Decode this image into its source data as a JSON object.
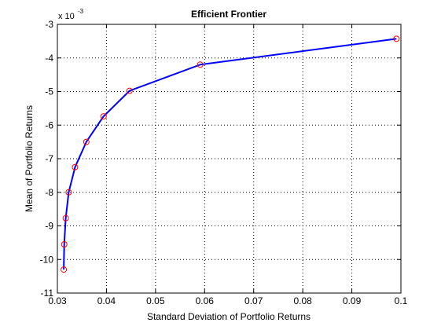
{
  "chart_data": {
    "type": "line",
    "title": "Efficient Frontier",
    "xlabel": "Standard Deviation of Portfolio Returns",
    "ylabel": "Mean of Portfolio Returns",
    "exponent_label": "x 10",
    "exponent_power": "-3",
    "xlim": [
      0.03,
      0.1
    ],
    "ylim": [
      -11,
      -3
    ],
    "x_ticks": [
      0.03,
      0.04,
      0.05,
      0.06,
      0.07,
      0.08,
      0.09,
      0.1
    ],
    "x_tick_labels": [
      "0.03",
      "0.04",
      "0.05",
      "0.06",
      "0.07",
      "0.08",
      "0.09",
      "0.1"
    ],
    "y_ticks": [
      -3,
      -4,
      -5,
      -6,
      -7,
      -8,
      -9,
      -10,
      -11
    ],
    "y_tick_labels": [
      "-3",
      "-4",
      "-5",
      "-6",
      "-7",
      "-8",
      "-9",
      "-10",
      "-11"
    ],
    "grid": true,
    "grid_style": "dotted",
    "series": [
      {
        "line_color": "#0000ff",
        "marker": "circle",
        "marker_color": "#ff0000",
        "x": [
          0.0313,
          0.0314,
          0.0317,
          0.0323,
          0.0336,
          0.0359,
          0.0394,
          0.0447,
          0.0591,
          0.0991
        ],
        "y": [
          -10.3,
          -9.55,
          -8.77,
          -8.0,
          -7.25,
          -6.5,
          -5.74,
          -4.98,
          -4.2,
          -3.43
        ]
      }
    ]
  }
}
